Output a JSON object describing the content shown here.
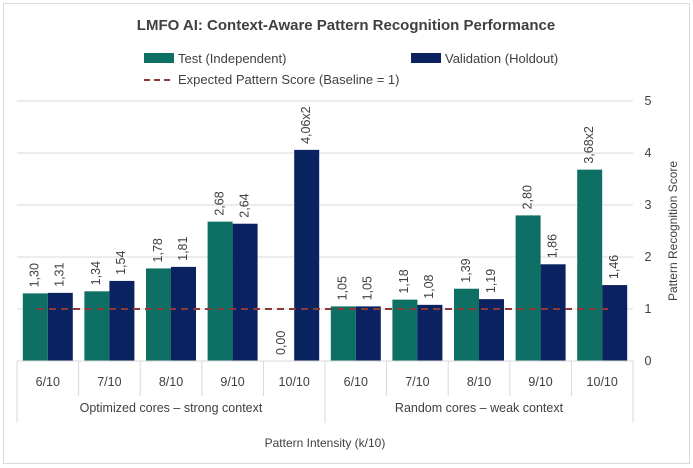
{
  "chart_data": {
    "type": "bar",
    "title": "LMFO AI: Context-Aware Pattern Recognition Performance",
    "xlabel": "Pattern Intensity (k/10)",
    "ylabel": "Pattern Recognition Score",
    "ylim": [
      0,
      5
    ],
    "y_ticks": [
      "0",
      "1",
      "2",
      "3",
      "4",
      "5"
    ],
    "y_axis_side": "right",
    "grid": true,
    "legend_position": "top",
    "groups": [
      {
        "name": "Optimized cores – strong context",
        "categories": [
          "6/10",
          "7/10",
          "8/10",
          "9/10",
          "10/10"
        ]
      },
      {
        "name": "Random cores – weak context",
        "categories": [
          "6/10",
          "7/10",
          "8/10",
          "9/10",
          "10/10"
        ]
      }
    ],
    "series": [
      {
        "name": "Test (Independent)",
        "color": "#0e7065",
        "values": [
          1.3,
          1.34,
          1.78,
          2.68,
          0.0,
          1.05,
          1.18,
          1.39,
          2.8,
          3.68
        ],
        "labels": [
          "1,30",
          "1,34",
          "1,78",
          "2,68",
          "0,00",
          "1,05",
          "1,18",
          "1,39",
          "2,80",
          "3,68x2"
        ]
      },
      {
        "name": "Validation (Holdout)",
        "color": "#0b2260",
        "values": [
          1.31,
          1.54,
          1.81,
          2.64,
          4.06,
          1.05,
          1.08,
          1.19,
          1.86,
          1.46
        ],
        "labels": [
          "1,31",
          "1,54",
          "1,81",
          "2,64",
          "4,06x2",
          "1,05",
          "1,08",
          "1,19",
          "1,86",
          "1,46"
        ]
      }
    ],
    "reference_line": {
      "name": "Expected Pattern Score (Baseline = 1)",
      "value": 1,
      "color": "#8b3a3a",
      "style": "dashed"
    }
  }
}
